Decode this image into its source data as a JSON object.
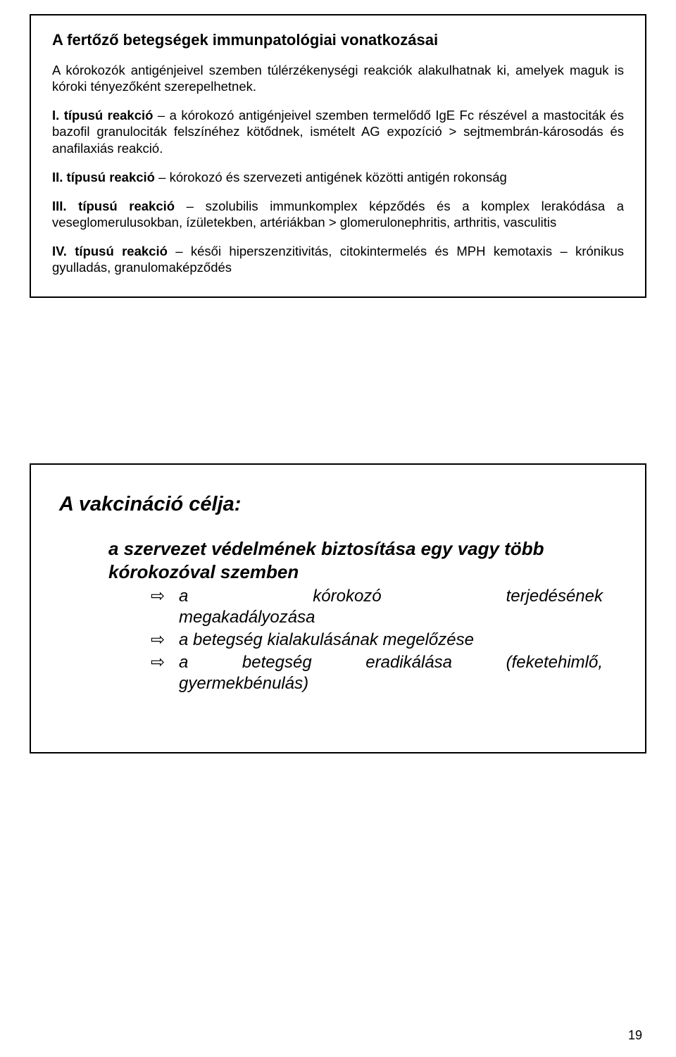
{
  "box1": {
    "title": "A fertőző betegségek immunpatológiai vonatkozásai",
    "intro": "A kórokozók antigénjeivel szemben túlérzékenységi reakciók alakulhatnak ki, amelyek maguk is kóroki tényezőként szerepelhetnek.",
    "p1_lead": "I. típusú reakció",
    "p1_rest": " – a kórokozó antigénjeivel szemben termelődő IgE Fc részével a mastociták és bazofil granulociták felszínéhez kötődnek, ismételt AG expozíció > sejtmembrán-károsodás és anafilaxiás reakció.",
    "p2_lead": "II. típusú reakció",
    "p2_rest": " – kórokozó és szervezeti antigének közötti antigén rokonság",
    "p3_lead": "III. típusú reakció",
    "p3_rest": " – szolubilis immunkomplex képződés és a komplex lerakódása a veseglomerulusokban, ízületekben, artériákban > glomerulonephritis, arthritis, vasculitis",
    "p4_lead": "IV. típusú reakció",
    "p4_rest": " – késői hiperszenzitivitás, citokintermelés és MPH kemotaxis – krónikus gyulladás, granulomaképződés"
  },
  "box2": {
    "title": "A vakcináció célja:",
    "goal_main": "a szervezet védelmének biztosítása egy vagy több kórokozóval szemben",
    "arrow": "⇨",
    "s1_a": "a",
    "s1_b": "kórokozó",
    "s1_c": "terjedésének",
    "s1_line2": "megakadályozása",
    "s2": "a betegség kialakulásának megelőzése",
    "s3_line1": "a betegség eradikálása (feketehimlő,",
    "s3_line2": "gyermekbénulás)"
  },
  "page_number": "19",
  "colors": {
    "text": "#000000",
    "background": "#ffffff",
    "border": "#000000"
  }
}
